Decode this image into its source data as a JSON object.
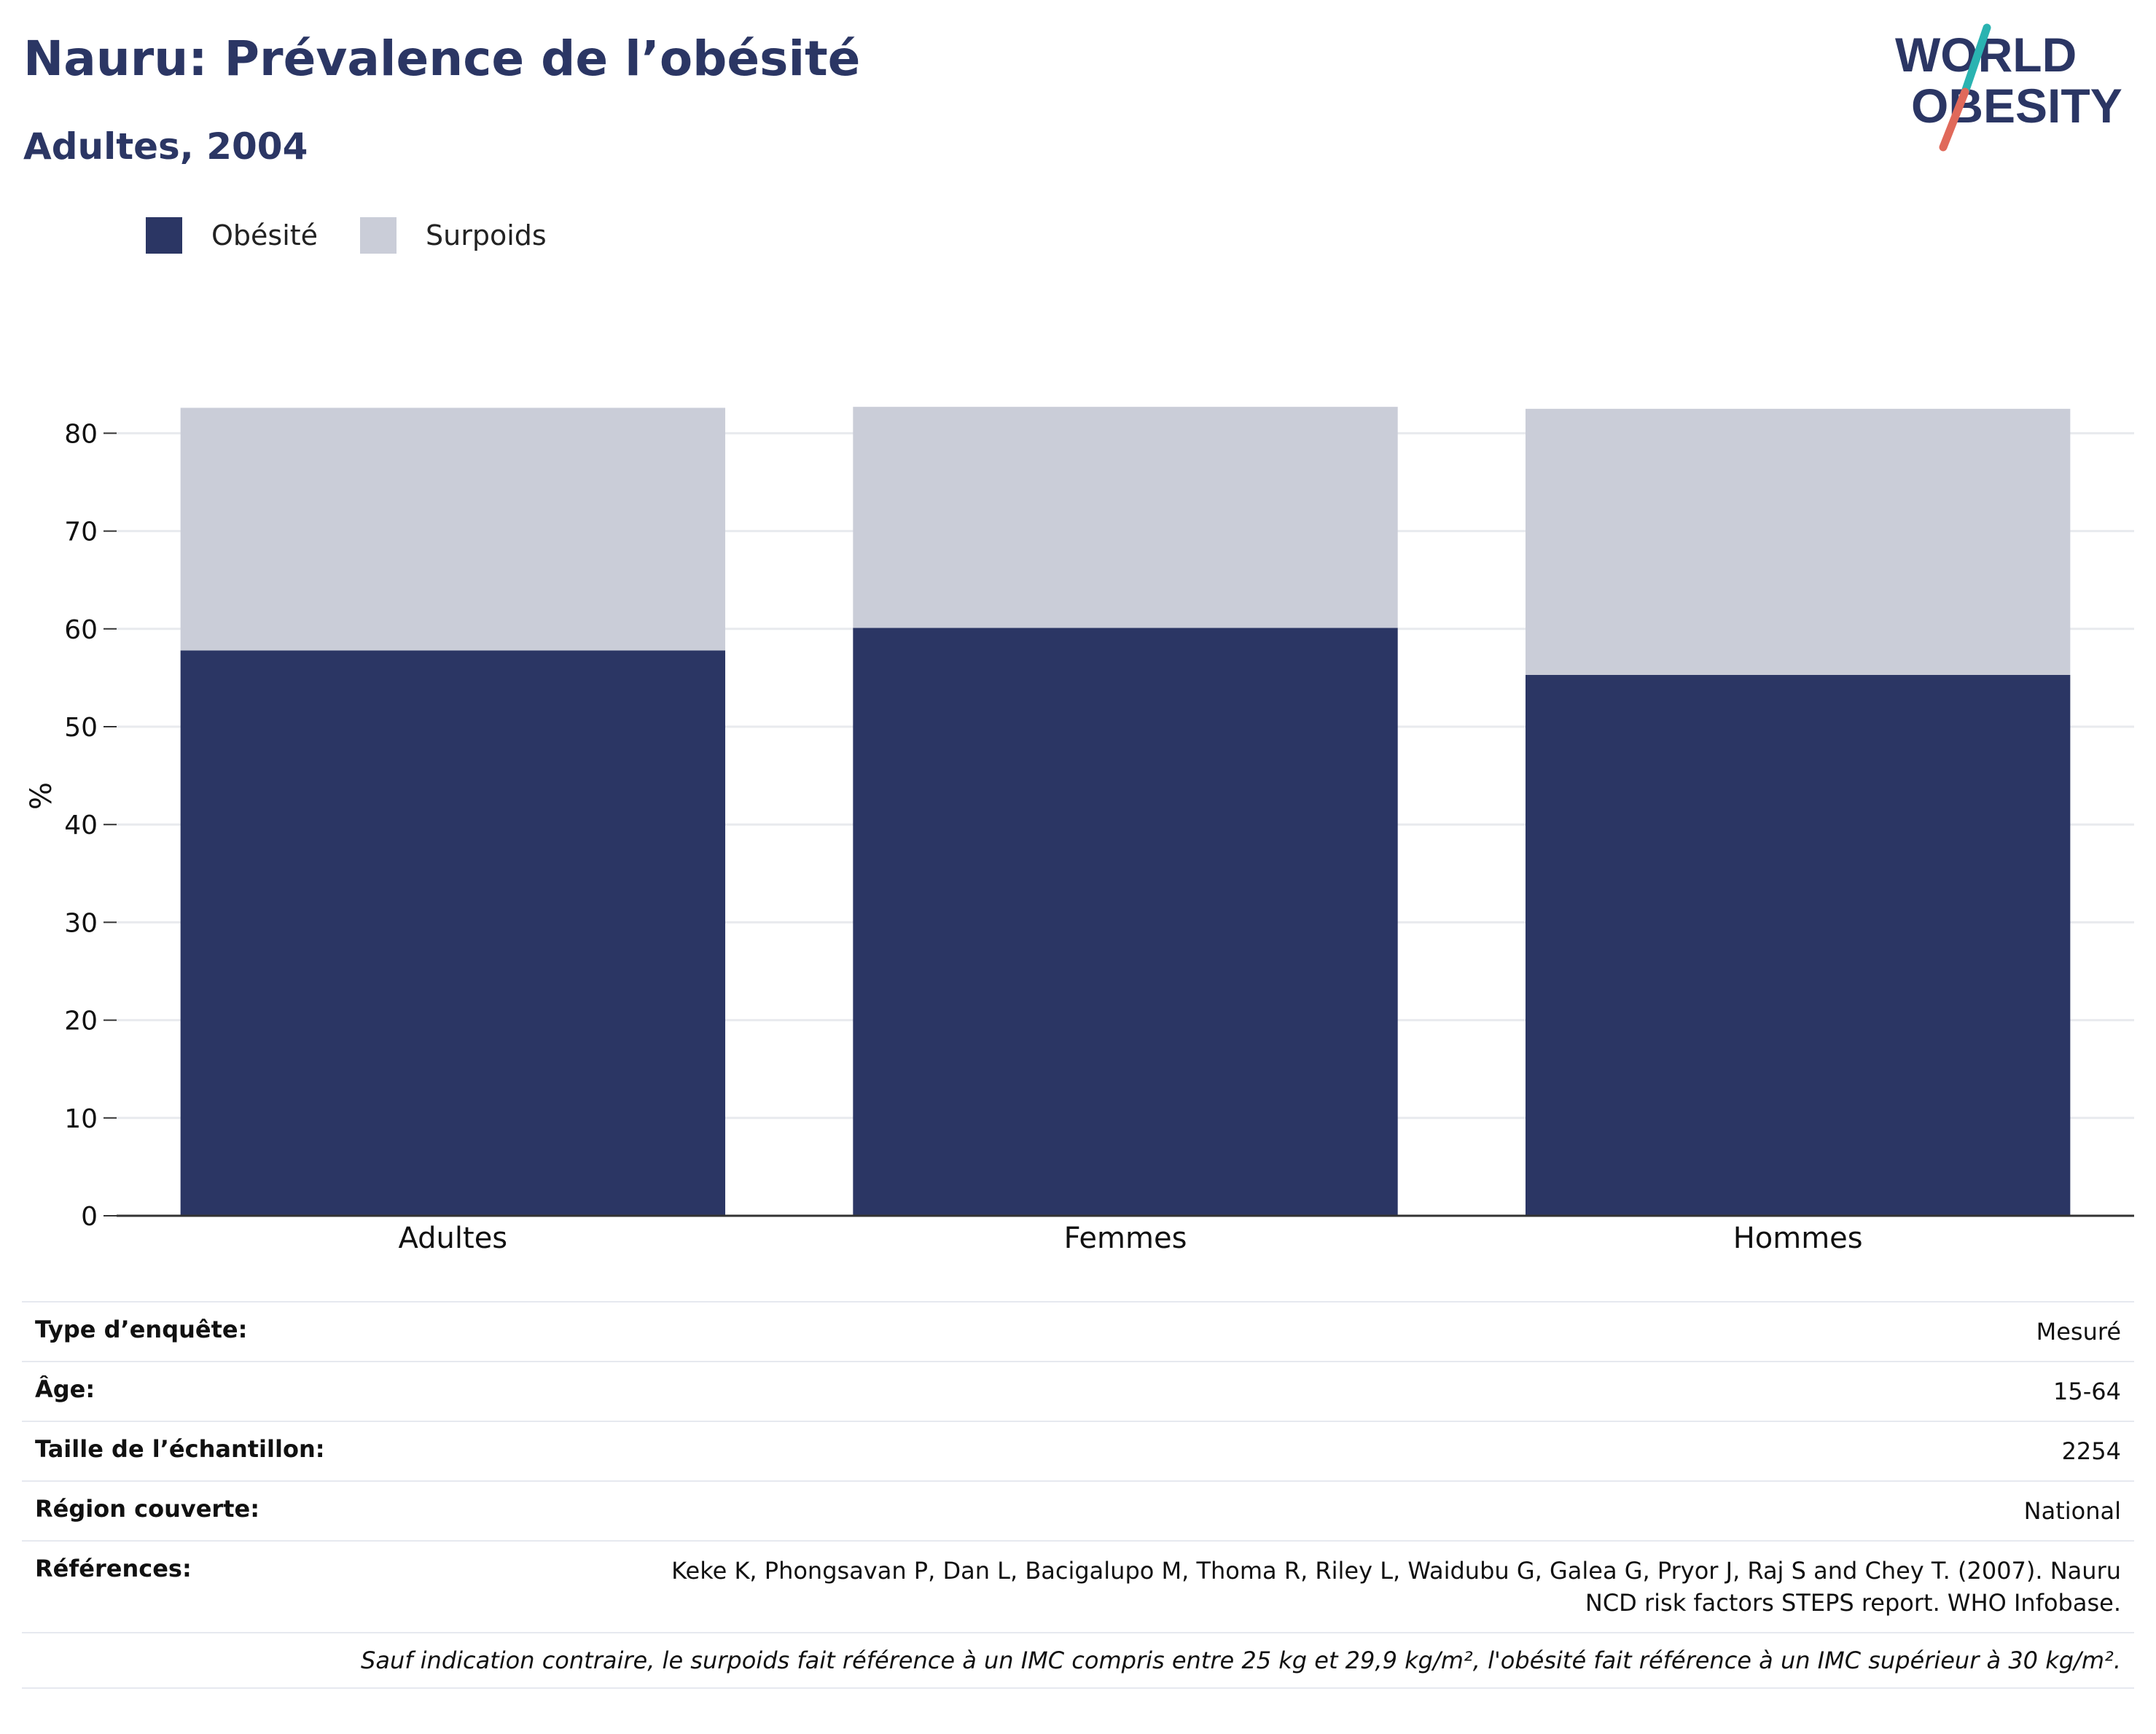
{
  "header": {
    "title": "Nauru: Prévalence de l’obésité",
    "subtitle": "Adultes, 2004"
  },
  "logo": {
    "line1": "WORLD",
    "line2": "OBESITY",
    "colors": {
      "text": "#2b3664",
      "slash_top": "#2ab3b1",
      "slash_bottom": "#e0695a"
    }
  },
  "legend": [
    {
      "label": "Obésité",
      "color": "#2b3664"
    },
    {
      "label": "Surpoids",
      "color": "#cacdd8"
    }
  ],
  "chart_data": {
    "type": "bar",
    "stacked": true,
    "categories": [
      "Adultes",
      "Femmes",
      "Hommes"
    ],
    "series": [
      {
        "name": "Obésité",
        "values": [
          57.8,
          60.1,
          55.3
        ],
        "color": "#2b3664"
      },
      {
        "name": "Surpoids",
        "values": [
          24.8,
          22.6,
          27.2
        ],
        "color": "#cacdd8"
      }
    ],
    "ylabel": "%",
    "xlabel": "",
    "ylim": [
      0,
      85
    ],
    "yticks": [
      0,
      10,
      20,
      30,
      40,
      50,
      60,
      70,
      80
    ],
    "grid": true,
    "legend_position": "top-left"
  },
  "info": {
    "rows": [
      {
        "key": "Type d’enquête:",
        "value": "Mesuré"
      },
      {
        "key": "Âge:",
        "value": "15-64"
      },
      {
        "key": "Taille de l’échantillon:",
        "value": "2254"
      },
      {
        "key": "Région couverte:",
        "value": "National"
      },
      {
        "key": "Références:",
        "value": "Keke K, Phongsavan P, Dan L, Bacigalupo M, Thoma R, Riley L, Waidubu G, Galea G, Pryor J, Raj S and Chey T. (2007). Nauru NCD risk factors STEPS report. WHO Infobase."
      }
    ],
    "note": "Sauf indication contraire, le surpoids fait référence à un IMC compris entre 25 kg et 29,9 kg/m², l'obésité fait référence à un IMC supérieur à 30 kg/m²."
  }
}
